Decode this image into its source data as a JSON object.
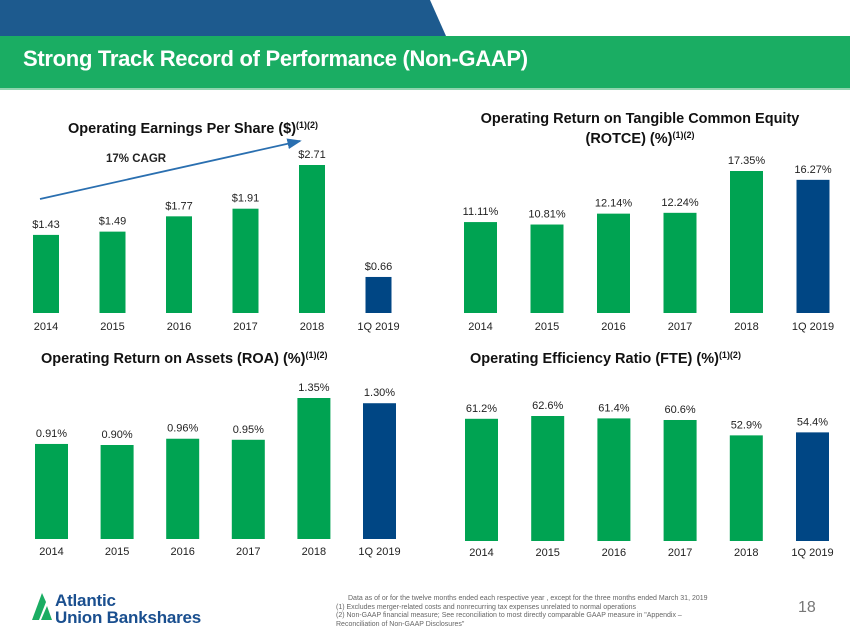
{
  "header": {
    "title": "Strong Track Record of Performance (Non-GAAP)",
    "colors": {
      "band_blue": "#1d5a8e",
      "title_green": "#1aad63"
    }
  },
  "colors": {
    "bar_green": "#00a352",
    "bar_blue": "#004684",
    "arrow_blue": "#2a6fb0"
  },
  "chart_data": [
    {
      "id": "eps",
      "type": "bar",
      "title": "Operating Earnings Per Share ($)",
      "title_sup": "(1)(2)",
      "categories": [
        "2014",
        "2015",
        "2016",
        "2017",
        "2018",
        "1Q 2019"
      ],
      "values": [
        1.43,
        1.49,
        1.77,
        1.91,
        2.71,
        0.66
      ],
      "labels": [
        "$1.43",
        "$1.49",
        "$1.77",
        "$1.91",
        "$2.71",
        "$0.66"
      ],
      "highlight_last": true,
      "annotation": "17% CAGR",
      "xlabel": "",
      "ylabel": "",
      "ylim": [
        0,
        2.71
      ],
      "grid": false
    },
    {
      "id": "rotce",
      "type": "bar",
      "title_line1": "Operating Return on Tangible Common Equity",
      "title": "(ROTCE) (%)",
      "title_sup": "(1)(2)",
      "categories": [
        "2014",
        "2015",
        "2016",
        "2017",
        "2018",
        "1Q 2019"
      ],
      "values": [
        11.11,
        10.81,
        12.14,
        12.24,
        17.35,
        16.27
      ],
      "labels": [
        "11.11%",
        "10.81%",
        "12.14%",
        "12.24%",
        "17.35%",
        "16.27%"
      ],
      "highlight_last": true,
      "xlabel": "",
      "ylabel": "",
      "ylim": [
        0,
        17.35
      ],
      "grid": false
    },
    {
      "id": "roa",
      "type": "bar",
      "title": "Operating Return on Assets (ROA) (%)",
      "title_sup": "(1)(2)",
      "categories": [
        "2014",
        "2015",
        "2016",
        "2017",
        "2018",
        "1Q 2019"
      ],
      "values": [
        0.91,
        0.9,
        0.96,
        0.95,
        1.35,
        1.3
      ],
      "labels": [
        "0.91%",
        "0.90%",
        "0.96%",
        "0.95%",
        "1.35%",
        "1.30%"
      ],
      "highlight_last": true,
      "xlabel": "",
      "ylabel": "",
      "ylim": [
        0,
        1.35
      ],
      "grid": false
    },
    {
      "id": "efficiency",
      "type": "bar",
      "title": "Operating Efficiency Ratio (FTE) (%)",
      "title_sup": "(1)(2)",
      "categories": [
        "2014",
        "2015",
        "2016",
        "2017",
        "2018",
        "1Q 2019"
      ],
      "values": [
        61.2,
        62.6,
        61.4,
        60.6,
        52.9,
        54.4
      ],
      "labels": [
        "61.2%",
        "62.6%",
        "61.4%",
        "60.6%",
        "52.9%",
        "54.4%"
      ],
      "highlight_last": true,
      "xlabel": "",
      "ylabel": "",
      "ylim": [
        0,
        62.6
      ],
      "grid": false
    }
  ],
  "footer": {
    "logo_line1": "Atlantic",
    "logo_line2": "Union Bankshares",
    "notes": [
      "Data as of or for the twelve months ended each respective year , except for the three months ended March 31, 2019",
      "(1) Excludes merger-related costs and nonrecurring tax expenses unrelated to normal operations",
      "(2) Non-GAAP financial measure; See reconciliation to most directly comparable GAAP measure in \"Appendix –",
      "Reconciliation of Non-GAAP Disclosures\""
    ],
    "page_number": "18"
  }
}
